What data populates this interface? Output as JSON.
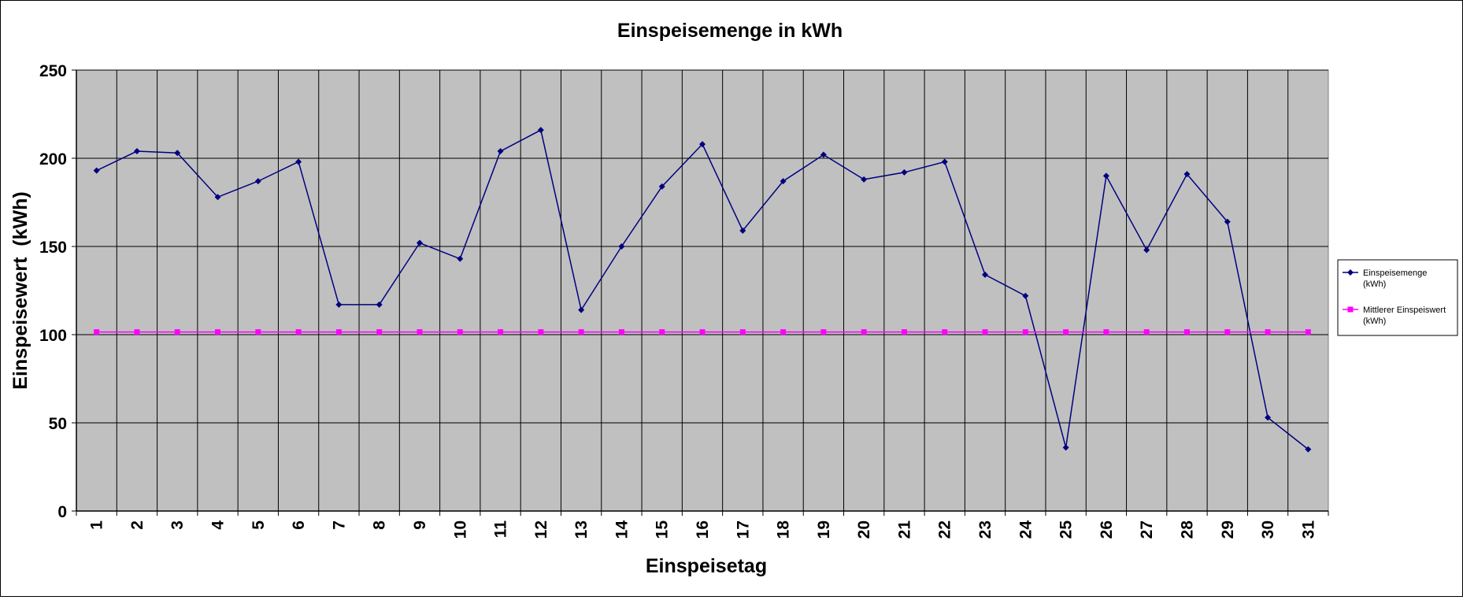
{
  "chart_data": {
    "type": "line",
    "title": "Einspeisemenge in kWh",
    "xlabel": "Einspeisetag",
    "ylabel": "Einspeisewert  (kWh)",
    "categories": [
      "1",
      "2",
      "3",
      "4",
      "5",
      "6",
      "7",
      "8",
      "9",
      "10",
      "11",
      "12",
      "13",
      "14",
      "15",
      "16",
      "17",
      "18",
      "19",
      "20",
      "21",
      "22",
      "23",
      "24",
      "25",
      "26",
      "27",
      "28",
      "29",
      "30",
      "31"
    ],
    "ylim": [
      0,
      250
    ],
    "yticks": [
      0,
      50,
      100,
      150,
      200,
      250
    ],
    "grid": true,
    "legend_position": "right",
    "plot_background": "#c0c0c0",
    "series": [
      {
        "name": "Einspeisemenge (kWh)",
        "legend_lines": [
          "Einspeisemenge",
          "(kWh)"
        ],
        "color": "#000080",
        "marker": "diamond",
        "values": [
          193,
          204,
          203,
          178,
          187,
          198,
          117,
          117,
          152,
          143,
          204,
          216,
          114,
          150,
          184,
          208,
          159,
          187,
          202,
          188,
          192,
          198,
          134,
          122,
          36,
          190,
          148,
          191,
          164,
          53,
          35
        ]
      },
      {
        "name": "Mittlerer Einspeiswert (kWh)",
        "legend_lines": [
          "Mittlerer Einspeiswert",
          "(kWh)"
        ],
        "color": "#ff00ff",
        "marker": "square",
        "values": [
          101.5,
          101.5,
          101.5,
          101.5,
          101.5,
          101.5,
          101.5,
          101.5,
          101.5,
          101.5,
          101.5,
          101.5,
          101.5,
          101.5,
          101.5,
          101.5,
          101.5,
          101.5,
          101.5,
          101.5,
          101.5,
          101.5,
          101.5,
          101.5,
          101.5,
          101.5,
          101.5,
          101.5,
          101.5,
          101.5,
          101.5
        ]
      }
    ]
  }
}
